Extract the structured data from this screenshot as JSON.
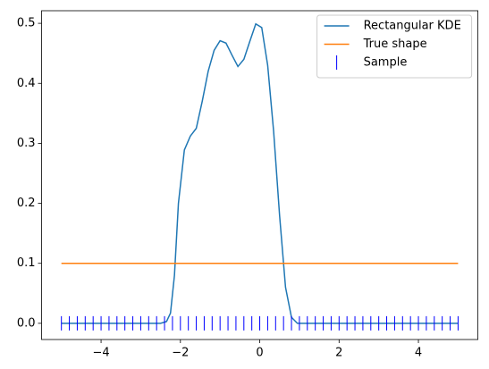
{
  "chart_data": {
    "type": "line",
    "xlim": [
      -5.5,
      5.5
    ],
    "ylim": [
      -0.027,
      0.521
    ],
    "xticks": [
      {
        "value": -4,
        "label": "−4"
      },
      {
        "value": -2,
        "label": "−2"
      },
      0,
      2,
      4
    ],
    "yticks": [
      {
        "value": 0,
        "label": "0.0"
      },
      {
        "value": 0.1,
        "label": "0.1"
      },
      {
        "value": 0.2,
        "label": "0.2"
      },
      {
        "value": 0.3,
        "label": "0.3"
      },
      {
        "value": 0.4,
        "label": "0.4"
      },
      {
        "value": 0.5,
        "label": "0.5"
      }
    ],
    "legend": "upper right",
    "series": [
      {
        "name": "Rectangular KDE",
        "color": "#1f77b4",
        "kind": "line",
        "x": [
          -5,
          -2.5,
          -2.35,
          -2.25,
          -2.15,
          -2.05,
          -1.9,
          -1.75,
          -1.6,
          -1.45,
          -1.3,
          -1.15,
          -1.0,
          -0.85,
          -0.7,
          -0.55,
          -0.4,
          -0.25,
          -0.1,
          0.05,
          0.2,
          0.35,
          0.5,
          0.65,
          0.8,
          0.95,
          5
        ],
        "values": [
          0,
          0,
          0.003,
          0.017,
          0.08,
          0.2,
          0.289,
          0.312,
          0.325,
          0.37,
          0.42,
          0.455,
          0.471,
          0.467,
          0.447,
          0.428,
          0.44,
          0.47,
          0.499,
          0.493,
          0.43,
          0.32,
          0.18,
          0.06,
          0.01,
          0,
          0
        ]
      },
      {
        "name": "True shape",
        "color": "#ff7f0e",
        "kind": "line",
        "x": [
          -5,
          5
        ],
        "values": [
          0.1,
          0.1
        ]
      },
      {
        "name": "Sample",
        "color": "#0000ff",
        "kind": "marker",
        "x": [
          -5,
          -4.8,
          -4.6,
          -4.4,
          -4.2,
          -4,
          -3.8,
          -3.6,
          -3.4,
          -3.2,
          -3,
          -2.8,
          -2.6,
          -2.4,
          -2.2,
          -2,
          -1.8,
          -1.6,
          -1.4,
          -1.2,
          -1,
          -0.8,
          -0.6,
          -0.4,
          -0.2,
          0,
          0.2,
          0.4,
          0.6,
          0.8,
          1,
          1.2,
          1.4,
          1.6,
          1.8,
          2,
          2.2,
          2.4,
          2.6,
          2.8,
          3,
          3.2,
          3.4,
          3.6,
          3.8,
          4,
          4.2,
          4.4,
          4.6,
          4.8,
          5
        ],
        "values": [
          0,
          0,
          0,
          0,
          0,
          0,
          0,
          0,
          0,
          0,
          0,
          0,
          0,
          0,
          0,
          0,
          0,
          0,
          0,
          0,
          0,
          0,
          0,
          0,
          0,
          0,
          0,
          0,
          0,
          0,
          0,
          0,
          0,
          0,
          0,
          0,
          0,
          0,
          0,
          0,
          0,
          0,
          0,
          0,
          0,
          0,
          0,
          0,
          0,
          0,
          0
        ]
      }
    ]
  }
}
